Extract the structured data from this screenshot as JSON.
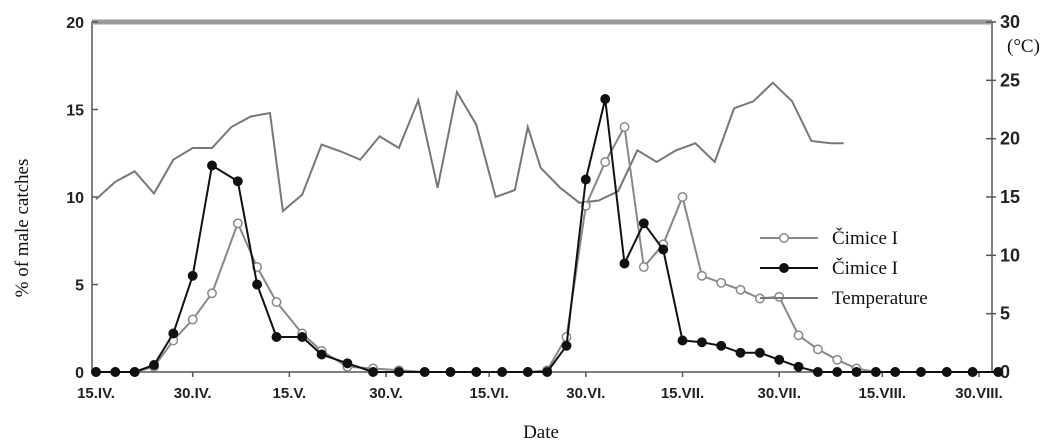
{
  "chart_data": {
    "type": "line",
    "xlabel": "Date",
    "ylabel": "% of male catches",
    "y2label": "(°C)",
    "ylim": [
      0,
      20
    ],
    "y2lim": [
      0,
      30
    ],
    "yticks": [
      "0",
      "5",
      "10",
      "15",
      "20"
    ],
    "y2ticks": [
      "0",
      "5",
      "10",
      "15",
      "20",
      "25",
      "30"
    ],
    "x_ticks": [
      {
        "label": "15.IV.",
        "x": 0
      },
      {
        "label": "30.IV.",
        "x": 15
      },
      {
        "label": "15.V.",
        "x": 30
      },
      {
        "label": "30.V.",
        "x": 45
      },
      {
        "label": "15.VI.",
        "x": 61
      },
      {
        "label": "30.VI.",
        "x": 76
      },
      {
        "label": "15.VII.",
        "x": 91
      },
      {
        "label": "30.VII.",
        "x": 106
      },
      {
        "label": "15.VIII.",
        "x": 122
      },
      {
        "label": "30.VIII.",
        "x": 137
      }
    ],
    "legend": {
      "position": "right",
      "entries": [
        "Čimice I",
        "Čimice I",
        "Temperature"
      ]
    },
    "series": [
      {
        "name": "Čimice I",
        "style": "open-circle",
        "axis": "left",
        "points": [
          [
            0,
            0
          ],
          [
            3,
            0
          ],
          [
            6,
            0
          ],
          [
            9,
            0.3
          ],
          [
            12,
            1.8
          ],
          [
            15,
            3
          ],
          [
            18,
            4.5
          ],
          [
            22,
            8.5
          ],
          [
            25,
            6
          ],
          [
            28,
            4
          ],
          [
            32,
            2.2
          ],
          [
            35,
            1.2
          ],
          [
            39,
            0.3
          ],
          [
            43,
            0.2
          ],
          [
            47,
            0.1
          ],
          [
            51,
            0
          ],
          [
            55,
            0
          ],
          [
            59,
            0
          ],
          [
            63,
            0
          ],
          [
            67,
            0
          ],
          [
            70,
            0.1
          ],
          [
            73,
            2
          ],
          [
            76,
            9.5
          ],
          [
            79,
            12
          ],
          [
            82,
            14
          ],
          [
            85,
            6
          ],
          [
            88,
            7.3
          ],
          [
            91,
            10
          ],
          [
            94,
            5.5
          ],
          [
            97,
            5.1
          ],
          [
            100,
            4.7
          ],
          [
            103,
            4.2
          ],
          [
            106,
            4.3
          ],
          [
            109,
            2.1
          ],
          [
            112,
            1.3
          ],
          [
            115,
            0.7
          ],
          [
            118,
            0.2
          ],
          [
            121,
            0
          ],
          [
            124,
            0
          ],
          [
            128,
            0
          ],
          [
            132,
            0
          ],
          [
            136,
            0
          ],
          [
            140,
            0
          ]
        ]
      },
      {
        "name": "Čimice I",
        "style": "filled-circle",
        "axis": "left",
        "points": [
          [
            0,
            0
          ],
          [
            3,
            0
          ],
          [
            6,
            0
          ],
          [
            9,
            0.4
          ],
          [
            12,
            2.2
          ],
          [
            15,
            5.5
          ],
          [
            18,
            11.8
          ],
          [
            22,
            10.9
          ],
          [
            25,
            5
          ],
          [
            28,
            2
          ],
          [
            32,
            2
          ],
          [
            35,
            1
          ],
          [
            39,
            0.5
          ],
          [
            43,
            0
          ],
          [
            47,
            0
          ],
          [
            51,
            0
          ],
          [
            55,
            0
          ],
          [
            59,
            0
          ],
          [
            63,
            0
          ],
          [
            67,
            0
          ],
          [
            70,
            0
          ],
          [
            73,
            1.5
          ],
          [
            76,
            11
          ],
          [
            79,
            15.6
          ],
          [
            82,
            6.2
          ],
          [
            85,
            8.5
          ],
          [
            88,
            7
          ],
          [
            91,
            1.8
          ],
          [
            94,
            1.7
          ],
          [
            97,
            1.5
          ],
          [
            100,
            1.1
          ],
          [
            103,
            1.1
          ],
          [
            106,
            0.7
          ],
          [
            109,
            0.3
          ],
          [
            112,
            0
          ],
          [
            115,
            0
          ],
          [
            118,
            0
          ],
          [
            121,
            0
          ],
          [
            124,
            0
          ],
          [
            128,
            0
          ],
          [
            132,
            0
          ],
          [
            136,
            0
          ],
          [
            140,
            0
          ]
        ]
      },
      {
        "name": "Temperature",
        "style": "line",
        "axis": "right",
        "points": [
          [
            0,
            14.8
          ],
          [
            3,
            16.3
          ],
          [
            6,
            17.2
          ],
          [
            9,
            15.3
          ],
          [
            12,
            18.2
          ],
          [
            15,
            19.2
          ],
          [
            18,
            19.2
          ],
          [
            21,
            21
          ],
          [
            24,
            21.9
          ],
          [
            27,
            22.2
          ],
          [
            29,
            13.8
          ],
          [
            32,
            15.2
          ],
          [
            35,
            19.5
          ],
          [
            38,
            18.9
          ],
          [
            41,
            18.2
          ],
          [
            44,
            20.2
          ],
          [
            47,
            19.2
          ],
          [
            50,
            23.3
          ],
          [
            53,
            15.8
          ],
          [
            56,
            24
          ],
          [
            59,
            21.2
          ],
          [
            62,
            15
          ],
          [
            65,
            15.6
          ],
          [
            67,
            21
          ],
          [
            69,
            17.5
          ],
          [
            72,
            15.8
          ],
          [
            75,
            14.5
          ],
          [
            78,
            14.7
          ],
          [
            81,
            15.5
          ],
          [
            84,
            19
          ],
          [
            87,
            18
          ],
          [
            90,
            19
          ],
          [
            93,
            19.6
          ],
          [
            96,
            18
          ],
          [
            99,
            22.6
          ],
          [
            102,
            23.2
          ],
          [
            105,
            24.8
          ],
          [
            108,
            23.2
          ],
          [
            111,
            19.8
          ],
          [
            114,
            19.6
          ],
          [
            116,
            19.6
          ]
        ]
      }
    ]
  }
}
